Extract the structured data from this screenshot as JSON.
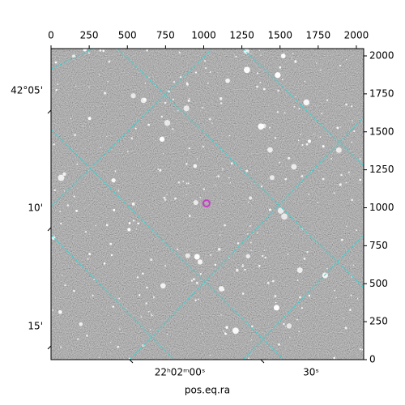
{
  "chart_data": {
    "type": "image",
    "xlabel": "pos.eq.ra",
    "xlim": [
      0,
      2048
    ],
    "ylim": [
      0,
      2048
    ],
    "xticks": [
      0,
      250,
      500,
      750,
      1000,
      1250,
      1500,
      1750,
      2000
    ],
    "yticks": [
      0,
      250,
      500,
      750,
      1000,
      1250,
      1500,
      1750,
      2000
    ],
    "ra_tick_labels": [
      "22ʰ02ᵐ00ˢ",
      "30ˢ"
    ],
    "dec_tick_labels": [
      "42°05'",
      "10'",
      "15'"
    ],
    "marker": {
      "x": 1018,
      "y": 1029,
      "color": "#c83cc8"
    }
  }
}
